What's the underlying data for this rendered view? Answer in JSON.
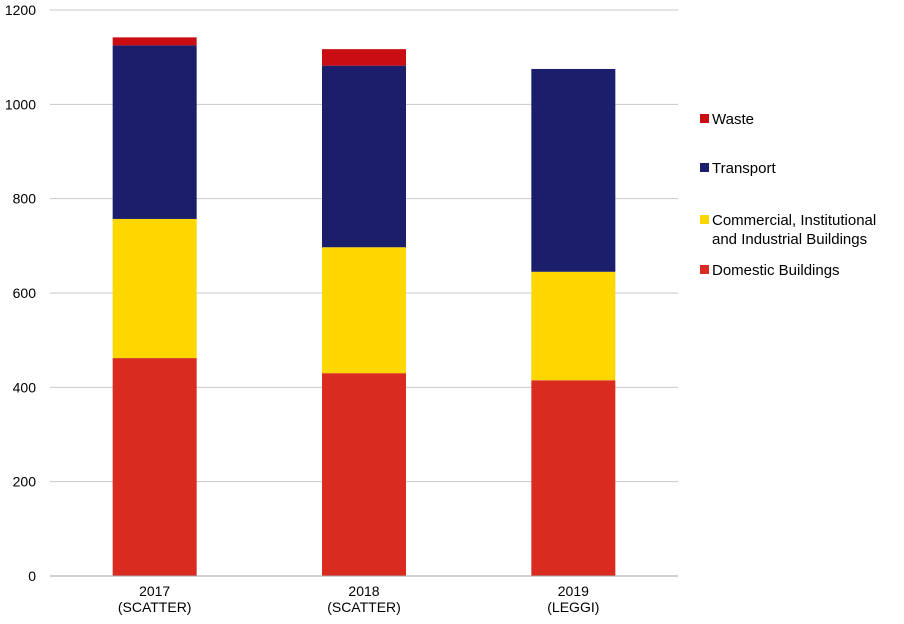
{
  "chart_data": {
    "type": "bar",
    "stacked": true,
    "title": "",
    "xlabel": "",
    "ylabel": "",
    "ylim": [
      0,
      1200
    ],
    "yticks": [
      0,
      200,
      400,
      600,
      800,
      1000,
      1200
    ],
    "grid": true,
    "legend_position": "right",
    "categories": [
      [
        "2017",
        "(SCATTER)"
      ],
      [
        "2018",
        "(SCATTER)"
      ],
      [
        "2019",
        "(LEGGI)"
      ]
    ],
    "series": [
      {
        "name": "Domestic Buildings",
        "color": "#d92b20",
        "values": [
          462,
          430,
          415
        ]
      },
      {
        "name": [
          "Commercial, Institutional",
          "and Industrial Buildings"
        ],
        "color": "#ffd700",
        "values": [
          295,
          267,
          230
        ]
      },
      {
        "name": "Transport",
        "color": "#1b1f6b",
        "values": [
          368,
          385,
          430
        ]
      },
      {
        "name": "Waste",
        "color": "#c90d12",
        "values": [
          17,
          35,
          0
        ]
      }
    ],
    "legend_order": [
      3,
      2,
      1,
      0
    ]
  }
}
